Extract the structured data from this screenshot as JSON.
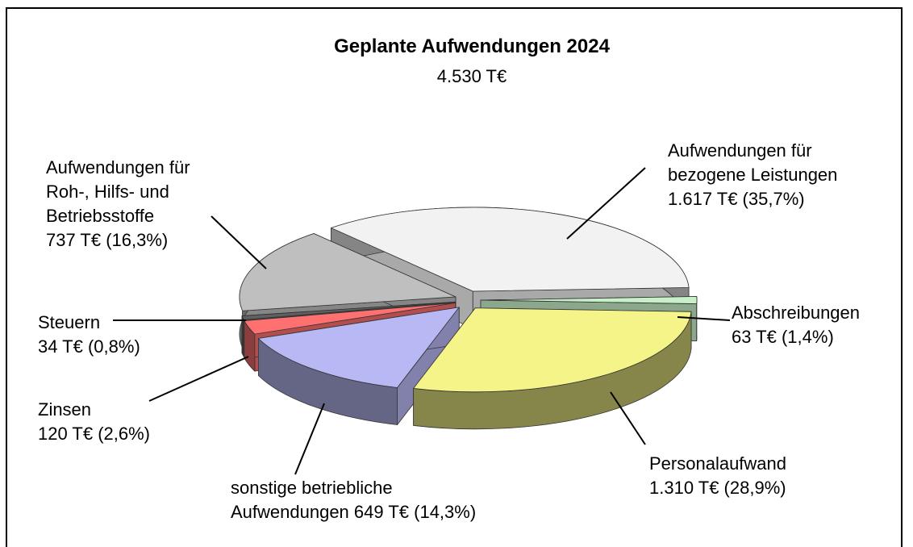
{
  "chart_data": {
    "type": "pie3d",
    "title": "Geplante Aufwendungen 2024",
    "subtitle": "4.530 T€",
    "categories": [
      "Aufwendungen für bezogene Leistungen",
      "Abschreibungen",
      "Personalaufwand",
      "sonstige betriebliche Aufwendungen",
      "Zinsen",
      "Steuern",
      "Aufwendungen für Roh-, Hilfs- und Betriebsstoffe"
    ],
    "values": [
      1617,
      63,
      1310,
      649,
      120,
      34,
      737
    ],
    "value_labels": [
      "1.617 T€ (35,7%)",
      "63 T€ (1,4%)",
      "1.310 T€ (28,9%)",
      "649 T€ (14,3%)",
      "120 T€ (2,6%)",
      "34 T€ (0,8%)",
      "737 T€ (16,3%)"
    ],
    "colors": [
      "#f2f2f2",
      "#c8f0c8",
      "#f4f488",
      "#b8b8f4",
      "#ff7070",
      "#606060",
      "#bfbfbf"
    ]
  }
}
